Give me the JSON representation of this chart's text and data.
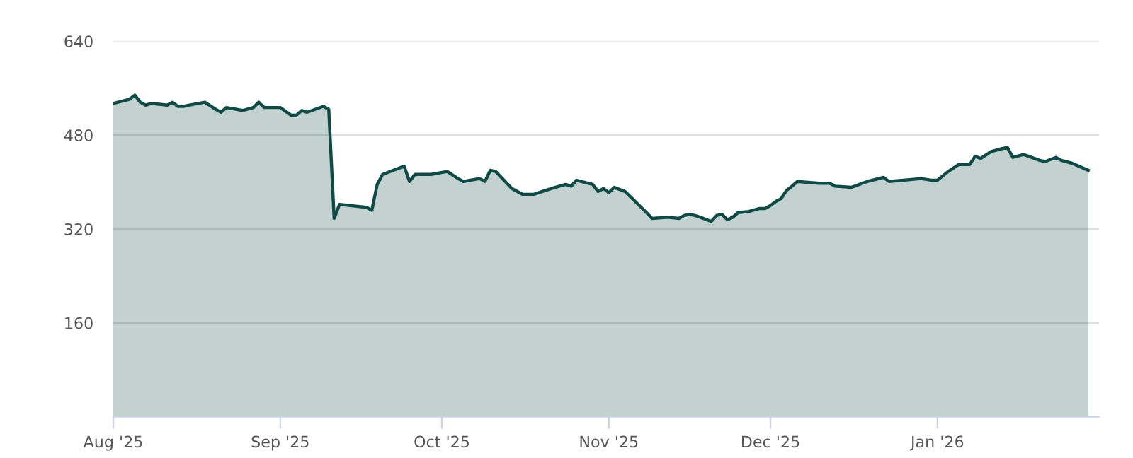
{
  "chart_data": {
    "type": "area",
    "x": [
      "2025-08-01",
      "2025-08-04",
      "2025-08-05",
      "2025-08-06",
      "2025-08-07",
      "2025-08-08",
      "2025-08-11",
      "2025-08-12",
      "2025-08-13",
      "2025-08-14",
      "2025-08-15",
      "2025-08-18",
      "2025-08-20",
      "2025-08-21",
      "2025-08-22",
      "2025-08-25",
      "2025-08-27",
      "2025-08-28",
      "2025-08-29",
      "2025-09-01",
      "2025-09-03",
      "2025-09-04",
      "2025-09-05",
      "2025-09-06",
      "2025-09-09",
      "2025-09-10",
      "2025-09-11",
      "2025-09-12",
      "2025-09-17",
      "2025-09-18",
      "2025-09-19",
      "2025-09-20",
      "2025-09-24",
      "2025-09-25",
      "2025-09-26",
      "2025-09-29",
      "2025-10-02",
      "2025-10-04",
      "2025-10-05",
      "2025-10-08",
      "2025-10-09",
      "2025-10-10",
      "2025-10-11",
      "2025-10-14",
      "2025-10-16",
      "2025-10-18",
      "2025-10-22",
      "2025-10-24",
      "2025-10-25",
      "2025-10-26",
      "2025-10-29",
      "2025-10-30",
      "2025-10-31",
      "2025-11-01",
      "2025-11-02",
      "2025-11-04",
      "2025-11-08",
      "2025-11-09",
      "2025-11-12",
      "2025-11-14",
      "2025-11-15",
      "2025-11-16",
      "2025-11-17",
      "2025-11-18",
      "2025-11-20",
      "2025-11-21",
      "2025-11-22",
      "2025-11-23",
      "2025-11-24",
      "2025-11-25",
      "2025-11-27",
      "2025-11-29",
      "2025-11-30",
      "2025-12-01",
      "2025-12-02",
      "2025-12-03",
      "2025-12-04",
      "2025-12-05",
      "2025-12-06",
      "2025-12-10",
      "2025-12-12",
      "2025-12-13",
      "2025-12-16",
      "2025-12-19",
      "2025-12-22",
      "2025-12-23",
      "2025-12-29",
      "2025-12-31",
      "2026-01-01",
      "2026-01-03",
      "2026-01-05",
      "2026-01-07",
      "2026-01-08",
      "2026-01-09",
      "2026-01-11",
      "2026-01-13",
      "2026-01-14",
      "2026-01-15",
      "2026-01-17",
      "2026-01-20",
      "2026-01-21",
      "2026-01-23",
      "2026-01-24",
      "2026-01-26",
      "2026-01-29"
    ],
    "series": [
      {
        "color": "#0f4a46",
        "values": [
          534,
          541,
          548,
          536,
          531,
          534,
          531,
          536,
          529,
          529,
          531,
          536,
          524,
          519,
          527,
          522,
          527,
          536,
          527,
          527,
          514,
          514,
          522,
          519,
          529,
          524,
          338,
          362,
          357,
          352,
          396,
          413,
          427,
          401,
          413,
          413,
          418,
          406,
          401,
          406,
          401,
          420,
          418,
          389,
          379,
          379,
          391,
          396,
          393,
          403,
          396,
          384,
          389,
          382,
          391,
          384,
          348,
          338,
          340,
          338,
          343,
          345,
          343,
          340,
          333,
          343,
          345,
          336,
          340,
          348,
          350,
          355,
          355,
          360,
          367,
          372,
          386,
          393,
          401,
          398,
          398,
          393,
          391,
          401,
          408,
          401,
          406,
          403,
          403,
          418,
          430,
          430,
          444,
          440,
          452,
          457,
          459,
          442,
          447,
          437,
          435,
          442,
          437,
          432,
          420
        ]
      }
    ],
    "xlim": [
      "2025-08-01",
      "2026-01-31"
    ],
    "xticks": [
      {
        "value": "2025-08-01",
        "label": "Aug '25"
      },
      {
        "value": "2025-09-01",
        "label": "Sep '25"
      },
      {
        "value": "2025-10-01",
        "label": "Oct '25"
      },
      {
        "value": "2025-11-01",
        "label": "Nov '25"
      },
      {
        "value": "2025-12-01",
        "label": "Dec '25"
      },
      {
        "value": "2026-01-01",
        "label": "Jan '26"
      }
    ],
    "ylim": [
      0,
      640
    ],
    "yticks": [
      160,
      320,
      480,
      640
    ],
    "grid": "y",
    "legend": false
  }
}
